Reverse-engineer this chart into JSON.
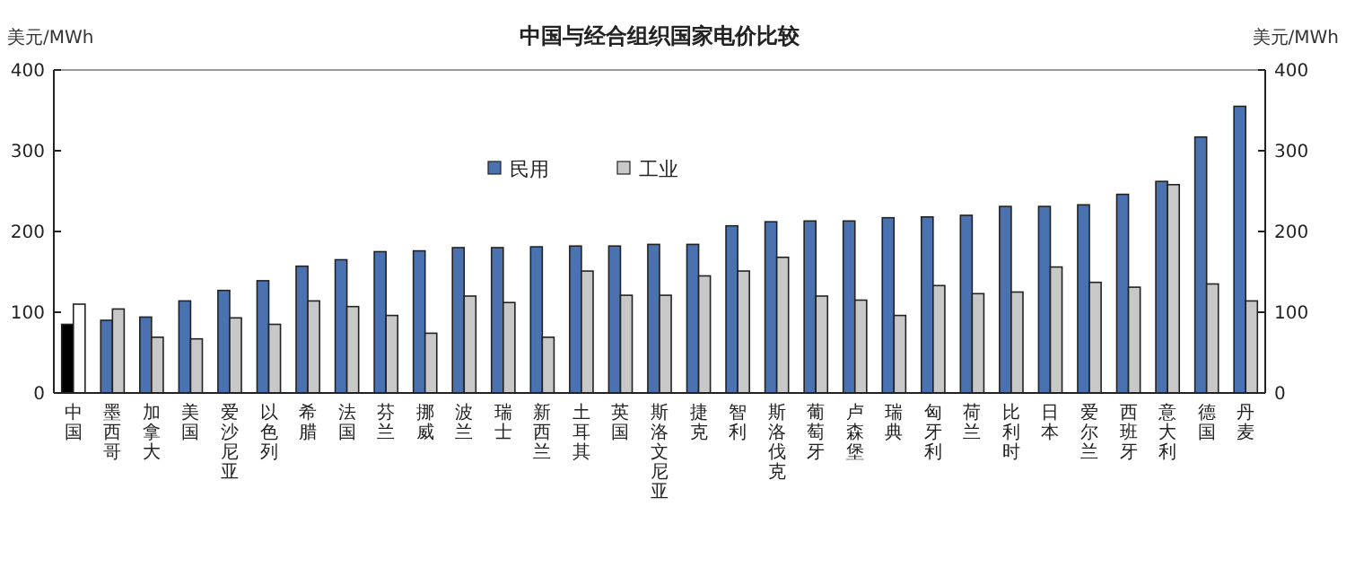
{
  "chart_data": {
    "type": "bar",
    "title": "中国与经合组织国家电价比较",
    "ylabel": "美元/MWh",
    "y2label": "美元/MWh",
    "categories": [
      "中国",
      "墨西哥",
      "加拿大",
      "美国",
      "爱沙尼亚",
      "以色列",
      "希腊",
      "法国",
      "芬兰",
      "挪威",
      "波兰",
      "瑞士",
      "新西兰",
      "土耳其",
      "英国",
      "斯洛文尼亚",
      "捷克",
      "智利",
      "斯洛伐克",
      "葡萄牙",
      "卢森堡",
      "瑞典",
      "匈牙利",
      "荷兰",
      "比利时",
      "日本",
      "爱尔兰",
      "西班牙",
      "意大利",
      "德国",
      "丹麦"
    ],
    "series": [
      {
        "name": "民用",
        "color": "#4a72b0",
        "colors": [
          "#000000",
          "#4a72b0",
          "#4a72b0",
          "#4a72b0",
          "#4a72b0",
          "#4a72b0",
          "#4a72b0",
          "#4a72b0",
          "#4a72b0",
          "#4a72b0",
          "#4a72b0",
          "#4a72b0",
          "#4a72b0",
          "#4a72b0",
          "#4a72b0",
          "#4a72b0",
          "#4a72b0",
          "#4a72b0",
          "#4a72b0",
          "#4a72b0",
          "#4a72b0",
          "#4a72b0",
          "#4a72b0",
          "#4a72b0",
          "#4a72b0",
          "#4a72b0",
          "#4a72b0",
          "#4a72b0",
          "#4a72b0",
          "#4a72b0",
          "#4a72b0"
        ],
        "values": [
          85,
          90,
          94,
          114,
          127,
          139,
          157,
          165,
          175,
          176,
          180,
          180,
          181,
          182,
          182,
          184,
          184,
          207,
          212,
          213,
          213,
          217,
          218,
          220,
          231,
          231,
          233,
          246,
          262,
          317,
          355
        ]
      },
      {
        "name": "工业",
        "color": "#c8c8c8",
        "colors": [
          "#ffffff",
          "#c8c8c8",
          "#c8c8c8",
          "#c8c8c8",
          "#c8c8c8",
          "#c8c8c8",
          "#c8c8c8",
          "#c8c8c8",
          "#c8c8c8",
          "#c8c8c8",
          "#c8c8c8",
          "#c8c8c8",
          "#c8c8c8",
          "#c8c8c8",
          "#c8c8c8",
          "#c8c8c8",
          "#c8c8c8",
          "#c8c8c8",
          "#c8c8c8",
          "#c8c8c8",
          "#c8c8c8",
          "#c8c8c8",
          "#c8c8c8",
          "#c8c8c8",
          "#c8c8c8",
          "#c8c8c8",
          "#c8c8c8",
          "#c8c8c8",
          "#c8c8c8",
          "#c8c8c8",
          "#c8c8c8"
        ],
        "values": [
          110,
          104,
          69,
          67,
          93,
          85,
          114,
          107,
          96,
          74,
          120,
          112,
          69,
          151,
          121,
          121,
          145,
          151,
          168,
          120,
          115,
          96,
          133,
          123,
          125,
          156,
          137,
          131,
          258,
          135,
          114
        ]
      }
    ],
    "ylim": [
      0,
      400
    ],
    "yticks": [
      0,
      100,
      200,
      300,
      400
    ],
    "y2lim": [
      0,
      400
    ],
    "y2ticks": [
      0,
      100,
      200,
      300,
      400
    ],
    "legend": "top",
    "grid": false
  }
}
